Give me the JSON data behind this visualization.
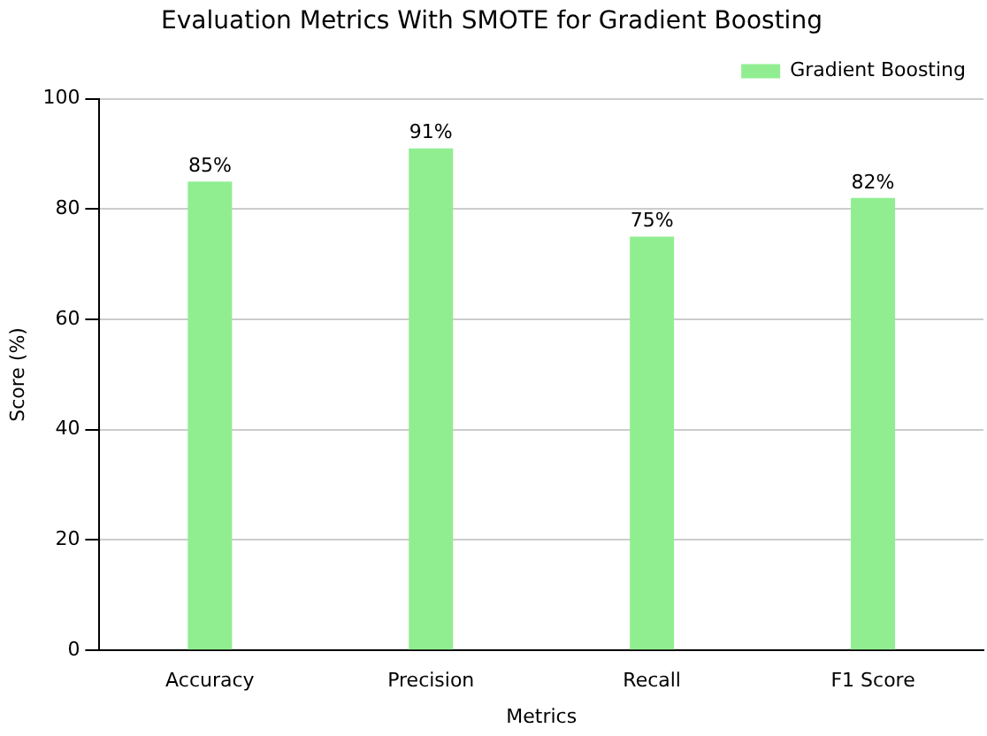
{
  "chart_data": {
    "type": "bar",
    "title": "Evaluation Metrics With SMOTE for Gradient Boosting",
    "xlabel": "Metrics",
    "ylabel": "Score (%)",
    "categories": [
      "Accuracy",
      "Precision",
      "Recall",
      "F1 Score"
    ],
    "series": [
      {
        "name": "Gradient Boosting",
        "color": "#90ee90",
        "values": [
          85,
          91,
          75,
          82
        ],
        "value_labels": [
          "85%",
          "91%",
          "75%",
          "82%"
        ]
      }
    ],
    "ylim": [
      0,
      100
    ],
    "yticks": [
      0,
      20,
      40,
      60,
      80,
      100
    ],
    "grid": "y",
    "legend": "top right"
  }
}
